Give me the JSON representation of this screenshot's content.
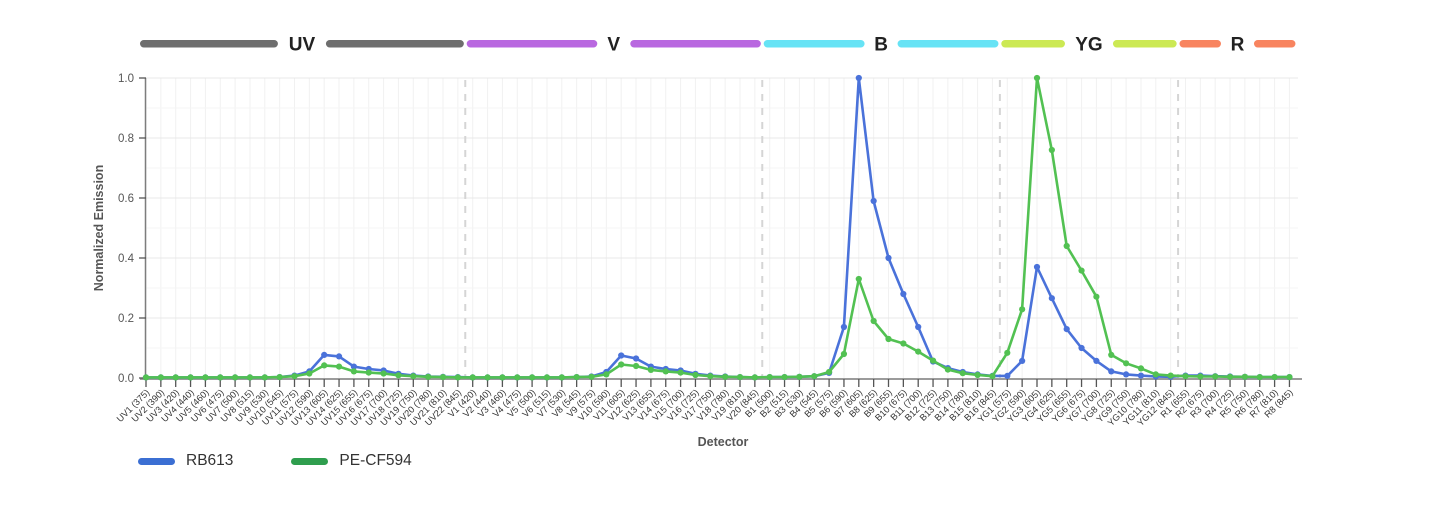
{
  "chart_data": {
    "type": "line",
    "title": "",
    "xlabel": "Detector",
    "ylabel": "Normalized Emission",
    "ylim": [
      0,
      1
    ],
    "y_ticks": [
      {
        "value": 0.0,
        "label": "0.0"
      },
      {
        "value": 0.2,
        "label": "0.2"
      },
      {
        "value": 0.4,
        "label": "0.4"
      },
      {
        "value": 0.6,
        "label": "0.6"
      },
      {
        "value": 0.8,
        "label": "0.8"
      },
      {
        "value": 1.0,
        "label": "1.0"
      }
    ],
    "grid": "on",
    "legend_position": "bottom-left",
    "laser_groups": [
      {
        "name": "UV",
        "color": "#6e6e6e",
        "count": 22
      },
      {
        "name": "V",
        "color": "#b968e0",
        "count": 20
      },
      {
        "name": "B",
        "color": "#67e3f5",
        "count": 16
      },
      {
        "name": "YG",
        "color": "#cce954",
        "count": 12
      },
      {
        "name": "R",
        "color": "#f8845f",
        "count": 8
      }
    ],
    "categories": [
      "UV1 (375)",
      "UV2 (390)",
      "UV3 (420)",
      "UV4 (440)",
      "UV5 (460)",
      "UV6 (475)",
      "UV7 (500)",
      "UV8 (515)",
      "UV9 (530)",
      "UV10 (545)",
      "UV11 (575)",
      "UV12 (590)",
      "UV13 (605)",
      "UV14 (625)",
      "UV15 (655)",
      "UV16 (675)",
      "UV17 (700)",
      "UV18 (725)",
      "UV19 (750)",
      "UV20 (780)",
      "UV21 (810)",
      "UV22 (845)",
      "V1 (420)",
      "V2 (440)",
      "V3 (460)",
      "V4 (475)",
      "V5 (500)",
      "V6 (515)",
      "V7 (530)",
      "V8 (545)",
      "V9 (575)",
      "V10 (590)",
      "V11 (605)",
      "V12 (625)",
      "V13 (655)",
      "V14 (675)",
      "V15 (700)",
      "V16 (725)",
      "V17 (750)",
      "V18 (780)",
      "V19 (810)",
      "V20 (845)",
      "B1 (500)",
      "B2 (515)",
      "B3 (530)",
      "B4 (545)",
      "B5 (575)",
      "B6 (590)",
      "B7 (605)",
      "B8 (625)",
      "B9 (655)",
      "B10 (675)",
      "B11 (700)",
      "B12 (725)",
      "B13 (750)",
      "B14 (780)",
      "B15 (810)",
      "B16 (845)",
      "YG1 (575)",
      "YG2 (590)",
      "YG3 (605)",
      "YG4 (625)",
      "YG5 (655)",
      "YG6 (675)",
      "YG7 (700)",
      "YG8 (725)",
      "YG9 (750)",
      "YG10 (780)",
      "YG11 (810)",
      "YG12 (845)",
      "R1 (655)",
      "R2 (675)",
      "R3 (700)",
      "R4 (725)",
      "R5 (750)",
      "R6 (780)",
      "R7 (810)",
      "R8 (845)"
    ],
    "series": [
      {
        "name": "RB613",
        "line_color": "#4a72da",
        "legend_color": "#3b6fd3",
        "values": [
          0.002,
          0.002,
          0.002,
          0.002,
          0.002,
          0.002,
          0.002,
          0.002,
          0.002,
          0.003,
          0.008,
          0.022,
          0.077,
          0.072,
          0.038,
          0.03,
          0.025,
          0.014,
          0.008,
          0.005,
          0.004,
          0.003,
          0.002,
          0.002,
          0.002,
          0.002,
          0.002,
          0.002,
          0.002,
          0.003,
          0.005,
          0.02,
          0.075,
          0.065,
          0.038,
          0.03,
          0.025,
          0.014,
          0.008,
          0.005,
          0.003,
          0.002,
          0.003,
          0.003,
          0.004,
          0.006,
          0.017,
          0.17,
          1.0,
          0.59,
          0.4,
          0.28,
          0.17,
          0.055,
          0.033,
          0.02,
          0.012,
          0.007,
          0.007,
          0.057,
          0.37,
          0.266,
          0.163,
          0.1,
          0.057,
          0.022,
          0.012,
          0.008,
          0.005,
          0.004,
          0.008,
          0.008,
          0.006,
          0.005,
          0.004,
          0.003,
          0.003,
          0.003
        ]
      },
      {
        "name": "PE-CF594",
        "line_color": "#52c152",
        "legend_color": "#2f9e4e",
        "values": [
          0.002,
          0.002,
          0.002,
          0.002,
          0.002,
          0.002,
          0.002,
          0.002,
          0.002,
          0.003,
          0.006,
          0.015,
          0.042,
          0.038,
          0.022,
          0.018,
          0.015,
          0.009,
          0.006,
          0.004,
          0.003,
          0.002,
          0.002,
          0.002,
          0.002,
          0.002,
          0.002,
          0.002,
          0.002,
          0.003,
          0.004,
          0.012,
          0.045,
          0.04,
          0.027,
          0.022,
          0.018,
          0.01,
          0.006,
          0.004,
          0.003,
          0.002,
          0.003,
          0.003,
          0.004,
          0.006,
          0.02,
          0.08,
          0.33,
          0.19,
          0.13,
          0.115,
          0.088,
          0.058,
          0.028,
          0.016,
          0.01,
          0.006,
          0.084,
          0.229,
          1.0,
          0.76,
          0.44,
          0.358,
          0.271,
          0.077,
          0.049,
          0.032,
          0.012,
          0.008,
          0.006,
          0.005,
          0.005,
          0.004,
          0.004,
          0.003,
          0.003,
          0.003
        ]
      }
    ]
  },
  "colors": {
    "separator": "#d5d5d5",
    "x_axis": "#9b9b9b",
    "y_axis": "#7d7d7d",
    "tick": "#555555",
    "tick_label": "#555555",
    "detector_label": "#333333",
    "axis_title": "#555555",
    "bar_label": "#222222",
    "grid_major": "#e8e8e8",
    "grid_minor": "#f5f5f5",
    "grid_vertical": "#f1f1f1"
  }
}
